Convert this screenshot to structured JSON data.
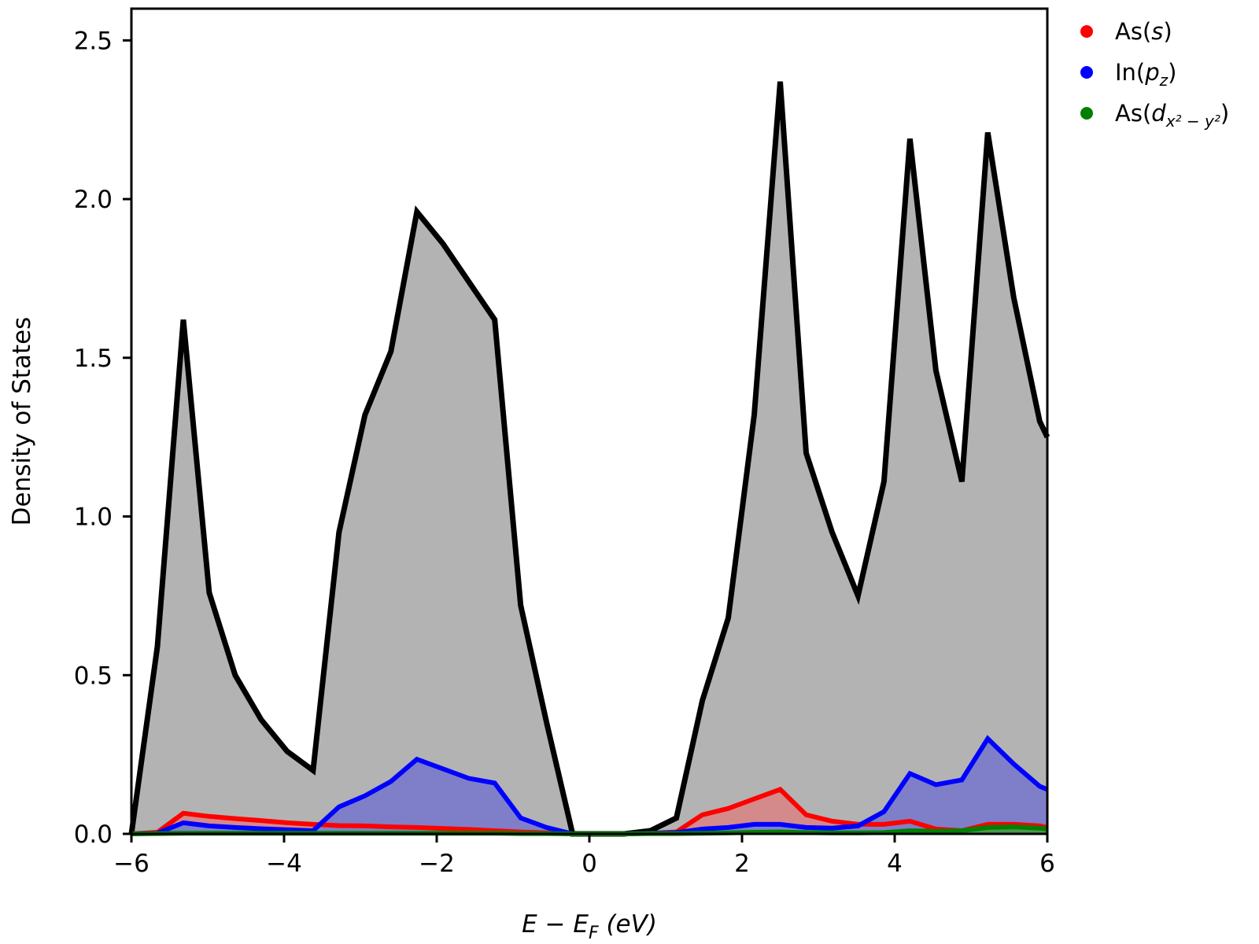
{
  "chart_data": {
    "type": "area",
    "title": "",
    "xlabel": {
      "var": "E",
      "minus": " − ",
      "sub_var": "E",
      "sub": "F",
      "unit": " (eV)"
    },
    "ylabel": "Density of States",
    "xlim": [
      -6,
      6
    ],
    "ylim": [
      0,
      2.6
    ],
    "x_ticks": [
      -6,
      -4,
      -2,
      0,
      2,
      4,
      6
    ],
    "x_tick_labels": [
      "−6",
      "−4",
      "−2",
      "0",
      "2",
      "4",
      "6"
    ],
    "y_ticks": [
      0,
      0.5,
      1.0,
      1.5,
      2.0,
      2.5
    ],
    "y_tick_labels": [
      "0.0",
      "0.5",
      "1.0",
      "1.5",
      "2.0",
      "2.5"
    ],
    "grid": false,
    "legend_position": "outside-top-right",
    "x": [
      -6.0,
      -5.66,
      -5.32,
      -4.98,
      -4.64,
      -4.3,
      -3.96,
      -3.62,
      -3.28,
      -2.94,
      -2.6,
      -2.26,
      -1.92,
      -1.58,
      -1.24,
      -0.9,
      -0.56,
      -0.22,
      0.12,
      0.46,
      0.8,
      1.14,
      1.48,
      1.82,
      2.16,
      2.5,
      2.84,
      3.18,
      3.52,
      3.86,
      4.2,
      4.54,
      4.88,
      5.22,
      5.56,
      5.9,
      6.0
    ],
    "total": {
      "color": "#000000",
      "fill": "#b3b3b3",
      "values": [
        0.0,
        0.59,
        1.62,
        0.76,
        0.5,
        0.36,
        0.26,
        0.2,
        0.95,
        1.32,
        1.52,
        1.96,
        1.86,
        1.74,
        1.62,
        0.72,
        0.35,
        0.0,
        0.0,
        0.0,
        0.01,
        0.05,
        0.42,
        0.68,
        1.32,
        2.37,
        1.2,
        0.95,
        0.75,
        1.11,
        2.19,
        1.46,
        1.11,
        2.21,
        1.69,
        1.3,
        1.25
      ]
    },
    "series": [
      {
        "name": "As(s)",
        "label_base": "As",
        "label_sub": "",
        "label_inner": "s",
        "color": "#ff0000",
        "fill": "#d48a8a",
        "values": [
          0.0,
          0.005,
          0.065,
          0.055,
          0.048,
          0.042,
          0.035,
          0.03,
          0.026,
          0.025,
          0.022,
          0.02,
          0.017,
          0.014,
          0.01,
          0.006,
          0.003,
          0.0,
          0.0,
          0.0,
          0.002,
          0.006,
          0.06,
          0.08,
          0.11,
          0.14,
          0.06,
          0.04,
          0.03,
          0.03,
          0.04,
          0.015,
          0.01,
          0.03,
          0.03,
          0.025,
          0.02
        ]
      },
      {
        "name": "In(pz)",
        "label_base": "In",
        "label_sub": "z",
        "label_inner": "p",
        "color": "#0000ff",
        "fill": "#7f7fc9",
        "values": [
          0.0,
          0.002,
          0.035,
          0.025,
          0.02,
          0.016,
          0.013,
          0.01,
          0.085,
          0.12,
          0.165,
          0.235,
          0.205,
          0.175,
          0.16,
          0.05,
          0.02,
          0.0,
          0.0,
          0.0,
          0.002,
          0.004,
          0.015,
          0.02,
          0.03,
          0.03,
          0.02,
          0.018,
          0.025,
          0.07,
          0.19,
          0.155,
          0.17,
          0.3,
          0.22,
          0.15,
          0.14
        ]
      },
      {
        "name": "As(dx²−y²)",
        "label_base": "As",
        "label_sub": "x² − y²",
        "label_inner": "d",
        "color": "#008000",
        "fill": "#4a9a4a",
        "values": [
          0.0,
          0.001,
          0.002,
          0.002,
          0.002,
          0.002,
          0.002,
          0.002,
          0.002,
          0.002,
          0.002,
          0.002,
          0.002,
          0.002,
          0.002,
          0.001,
          0.001,
          0.0,
          0.0,
          0.0,
          0.001,
          0.001,
          0.002,
          0.003,
          0.005,
          0.006,
          0.004,
          0.003,
          0.003,
          0.004,
          0.01,
          0.008,
          0.01,
          0.02,
          0.022,
          0.018,
          0.015
        ]
      }
    ]
  }
}
